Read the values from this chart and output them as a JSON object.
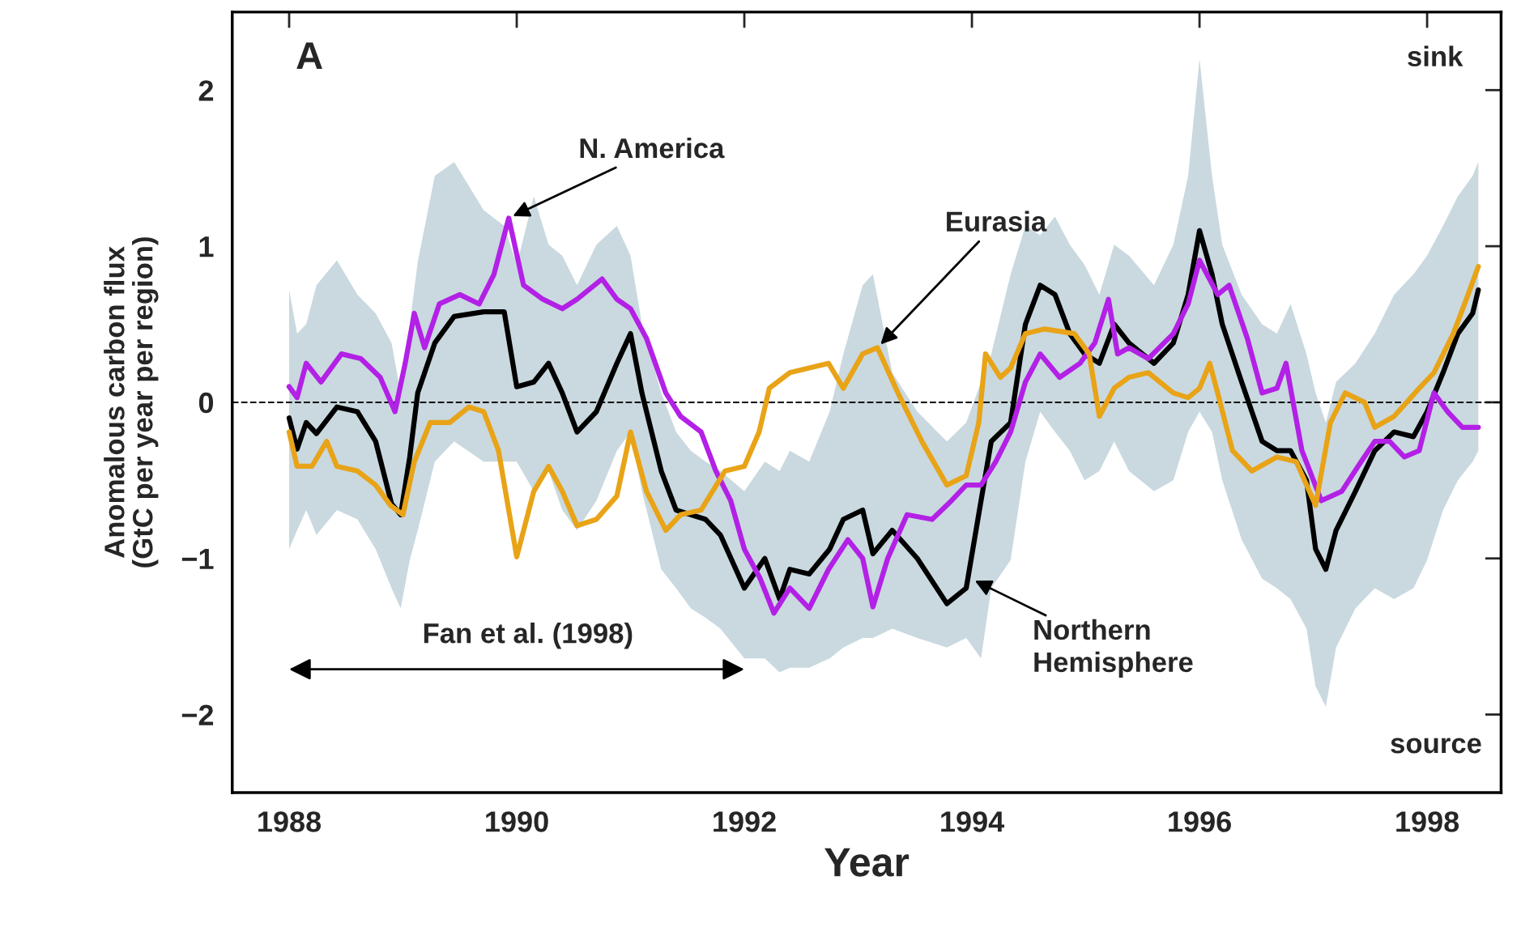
{
  "chart_data": {
    "type": "line",
    "xlabel": "Year",
    "ylabel": "Anomalous carbon flux\n(GtC per year per region)",
    "xlim": [
      1987.5,
      1998.65
    ],
    "xticks": [
      1988,
      1990,
      1992,
      1994,
      1996,
      1998
    ],
    "ylim": [
      -2.5,
      2.5
    ],
    "yticks": [
      -2,
      -1,
      0,
      1,
      2
    ],
    "grid": false,
    "legend": false,
    "line_style": "solid",
    "ref_lines": [
      {
        "axis": "y",
        "value": 0,
        "color": "#000000",
        "line_style": "dashed"
      }
    ],
    "annotations": [
      "A",
      "sink",
      "source",
      "Fan et al. (1998)",
      {
        "text": "N. America",
        "x": 1989.93,
        "y": 1.18
      },
      {
        "text": "Eurasia",
        "x": 1993.17,
        "y": 0.35
      },
      {
        "text": "Northern\nHemisphere",
        "x": 1993.99,
        "y": -1.13
      }
    ],
    "series": [
      {
        "color": "#000000",
        "x": [
          1988.0,
          1988.07,
          1988.15,
          1988.24,
          1988.42,
          1988.6,
          1988.76,
          1988.9,
          1988.98,
          1989.06,
          1989.13,
          1989.28,
          1989.45,
          1989.71,
          1989.89,
          1990.0,
          1990.15,
          1990.28,
          1990.4,
          1990.53,
          1990.7,
          1990.88,
          1991.0,
          1991.1,
          1991.27,
          1991.4,
          1991.53,
          1991.66,
          1991.79,
          1992.0,
          1992.18,
          1992.31,
          1992.4,
          1992.57,
          1992.75,
          1992.87,
          1993.04,
          1993.13,
          1993.3,
          1993.52,
          1993.78,
          1993.95,
          1994.08,
          1994.17,
          1994.34,
          1994.47,
          1994.6,
          1994.73,
          1994.86,
          1994.99,
          1995.12,
          1995.25,
          1995.38,
          1995.6,
          1995.77,
          1995.9,
          1996.0,
          1996.11,
          1996.2,
          1996.37,
          1996.55,
          1996.68,
          1996.8,
          1996.94,
          1997.02,
          1997.11,
          1997.2,
          1997.37,
          1997.54,
          1997.71,
          1997.88,
          1998.0,
          1998.14,
          1998.27,
          1998.4,
          1998.45
        ],
        "values": [
          -0.1,
          -0.3,
          -0.13,
          -0.2,
          -0.03,
          -0.06,
          -0.25,
          -0.65,
          -0.72,
          -0.35,
          0.06,
          0.38,
          0.55,
          0.58,
          0.58,
          0.1,
          0.13,
          0.25,
          0.06,
          -0.19,
          -0.06,
          0.25,
          0.44,
          0.06,
          -0.44,
          -0.69,
          -0.72,
          -0.75,
          -0.85,
          -1.19,
          -1.0,
          -1.26,
          -1.07,
          -1.1,
          -0.94,
          -0.75,
          -0.69,
          -0.97,
          -0.82,
          -1.0,
          -1.29,
          -1.19,
          -0.63,
          -0.25,
          -0.13,
          0.5,
          0.75,
          0.69,
          0.44,
          0.31,
          0.25,
          0.5,
          0.38,
          0.25,
          0.38,
          0.69,
          1.1,
          0.82,
          0.5,
          0.13,
          -0.25,
          -0.31,
          -0.31,
          -0.5,
          -0.94,
          -1.07,
          -0.82,
          -0.57,
          -0.31,
          -0.19,
          -0.22,
          -0.06,
          0.19,
          0.44,
          0.57,
          0.72
        ],
        "upper": [
          0.72,
          0.44,
          0.5,
          0.75,
          0.91,
          0.69,
          0.57,
          0.38,
          0.06,
          0.5,
          0.9,
          1.45,
          1.54,
          1.23,
          1.13,
          0.88,
          1.32,
          1.01,
          0.94,
          0.75,
          1.01,
          1.13,
          0.94,
          0.5,
          0.06,
          -0.19,
          -0.31,
          -0.38,
          -0.44,
          -0.57,
          -0.38,
          -0.44,
          -0.31,
          -0.38,
          -0.06,
          0.31,
          0.75,
          0.82,
          0.19,
          -0.06,
          -0.25,
          -0.13,
          0.13,
          0.31,
          0.82,
          1.13,
          1.07,
          1.19,
          1.01,
          0.88,
          0.69,
          1.01,
          0.94,
          0.75,
          1.01,
          1.45,
          2.2,
          1.45,
          1.01,
          0.69,
          0.5,
          0.44,
          0.63,
          0.31,
          0.06,
          -0.13,
          0.13,
          0.25,
          0.44,
          0.69,
          0.82,
          0.94,
          1.13,
          1.32,
          1.45,
          1.54
        ],
        "lower": [
          -0.94,
          -0.82,
          -0.69,
          -0.85,
          -0.69,
          -0.75,
          -0.94,
          -1.19,
          -1.32,
          -1.01,
          -0.82,
          -0.38,
          -0.25,
          -0.38,
          -0.38,
          -0.38,
          -0.57,
          -0.44,
          -0.69,
          -0.82,
          -0.63,
          -0.31,
          -0.19,
          -0.57,
          -1.07,
          -1.19,
          -1.32,
          -1.38,
          -1.45,
          -1.64,
          -1.64,
          -1.73,
          -1.7,
          -1.7,
          -1.64,
          -1.57,
          -1.51,
          -1.51,
          -1.45,
          -1.51,
          -1.57,
          -1.51,
          -1.64,
          -1.19,
          -1.01,
          -0.38,
          -0.06,
          -0.19,
          -0.31,
          -0.5,
          -0.44,
          -0.25,
          -0.44,
          -0.57,
          -0.5,
          -0.19,
          -0.06,
          -0.19,
          -0.5,
          -0.88,
          -1.13,
          -1.19,
          -1.26,
          -1.45,
          -1.82,
          -1.95,
          -1.57,
          -1.32,
          -1.19,
          -1.26,
          -1.19,
          -1.01,
          -0.69,
          -0.5,
          -0.38,
          -0.31
        ]
      },
      {
        "color": "#b320e6",
        "x": [
          1988.0,
          1988.07,
          1988.15,
          1988.28,
          1988.46,
          1988.63,
          1988.8,
          1988.93,
          1989.02,
          1989.1,
          1989.19,
          1989.32,
          1989.5,
          1989.67,
          1989.8,
          1989.93,
          1990.06,
          1990.23,
          1990.4,
          1990.53,
          1990.75,
          1990.88,
          1991.0,
          1991.14,
          1991.31,
          1991.44,
          1991.62,
          1991.75,
          1991.88,
          1992.0,
          1992.14,
          1992.26,
          1992.4,
          1992.57,
          1992.74,
          1992.91,
          1993.04,
          1993.13,
          1993.26,
          1993.43,
          1993.65,
          1993.82,
          1993.95,
          1994.08,
          1994.21,
          1994.34,
          1994.47,
          1994.6,
          1994.77,
          1994.95,
          1995.08,
          1995.2,
          1995.28,
          1995.38,
          1995.55,
          1995.77,
          1995.9,
          1996.0,
          1996.16,
          1996.26,
          1996.42,
          1996.55,
          1996.68,
          1996.76,
          1996.9,
          1997.07,
          1997.25,
          1997.42,
          1997.54,
          1997.67,
          1997.8,
          1997.93,
          1998.06,
          1998.18,
          1998.31,
          1998.45
        ],
        "values": [
          0.1,
          0.03,
          0.25,
          0.13,
          0.31,
          0.28,
          0.16,
          -0.06,
          0.25,
          0.57,
          0.35,
          0.63,
          0.69,
          0.63,
          0.82,
          1.18,
          0.75,
          0.66,
          0.6,
          0.66,
          0.79,
          0.66,
          0.6,
          0.41,
          0.06,
          -0.09,
          -0.19,
          -0.44,
          -0.63,
          -0.94,
          -1.13,
          -1.35,
          -1.19,
          -1.32,
          -1.07,
          -0.88,
          -1.0,
          -1.31,
          -1.0,
          -0.72,
          -0.75,
          -0.63,
          -0.53,
          -0.53,
          -0.38,
          -0.19,
          0.13,
          0.31,
          0.16,
          0.25,
          0.38,
          0.66,
          0.31,
          0.35,
          0.28,
          0.44,
          0.63,
          0.91,
          0.69,
          0.75,
          0.41,
          0.06,
          0.09,
          0.25,
          -0.31,
          -0.63,
          -0.57,
          -0.38,
          -0.25,
          -0.25,
          -0.35,
          -0.31,
          0.06,
          -0.06,
          -0.16,
          -0.16
        ]
      },
      {
        "color": "#e8a317",
        "x": [
          1988.0,
          1988.07,
          1988.2,
          1988.33,
          1988.42,
          1988.6,
          1988.76,
          1988.89,
          1989.0,
          1989.1,
          1989.24,
          1989.41,
          1989.58,
          1989.71,
          1989.84,
          1990.0,
          1990.15,
          1990.28,
          1990.4,
          1990.53,
          1990.7,
          1990.88,
          1991.0,
          1991.14,
          1991.31,
          1991.44,
          1991.62,
          1991.83,
          1992.0,
          1992.13,
          1992.22,
          1992.4,
          1992.57,
          1992.74,
          1992.87,
          1993.04,
          1993.17,
          1993.35,
          1993.56,
          1993.78,
          1993.95,
          1994.06,
          1994.12,
          1994.25,
          1994.34,
          1994.47,
          1994.64,
          1994.9,
          1995.03,
          1995.12,
          1995.25,
          1995.38,
          1995.55,
          1995.77,
          1995.9,
          1996.0,
          1996.09,
          1996.17,
          1996.29,
          1996.46,
          1996.68,
          1996.85,
          1997.02,
          1997.15,
          1997.28,
          1997.45,
          1997.54,
          1997.71,
          1997.93,
          1998.06,
          1998.23,
          1998.36,
          1998.45
        ],
        "values": [
          -0.19,
          -0.41,
          -0.41,
          -0.25,
          -0.41,
          -0.44,
          -0.53,
          -0.66,
          -0.72,
          -0.38,
          -0.13,
          -0.13,
          -0.03,
          -0.06,
          -0.31,
          -0.99,
          -0.57,
          -0.41,
          -0.57,
          -0.79,
          -0.75,
          -0.6,
          -0.19,
          -0.57,
          -0.82,
          -0.72,
          -0.69,
          -0.44,
          -0.41,
          -0.19,
          0.09,
          0.19,
          0.22,
          0.25,
          0.09,
          0.31,
          0.35,
          0.06,
          -0.25,
          -0.53,
          -0.47,
          -0.13,
          0.31,
          0.16,
          0.22,
          0.44,
          0.47,
          0.44,
          0.31,
          -0.09,
          0.09,
          0.16,
          0.19,
          0.06,
          0.03,
          0.09,
          0.25,
          0.03,
          -0.31,
          -0.44,
          -0.35,
          -0.38,
          -0.66,
          -0.13,
          0.06,
          0.0,
          -0.16,
          -0.09,
          0.09,
          0.19,
          0.44,
          0.69,
          0.87
        ]
      },
      {
        "color": "#000000",
        "x": [
          1988.0,
          1992.0
        ],
        "values": [
          -1.71,
          -1.71
        ]
      }
    ]
  }
}
